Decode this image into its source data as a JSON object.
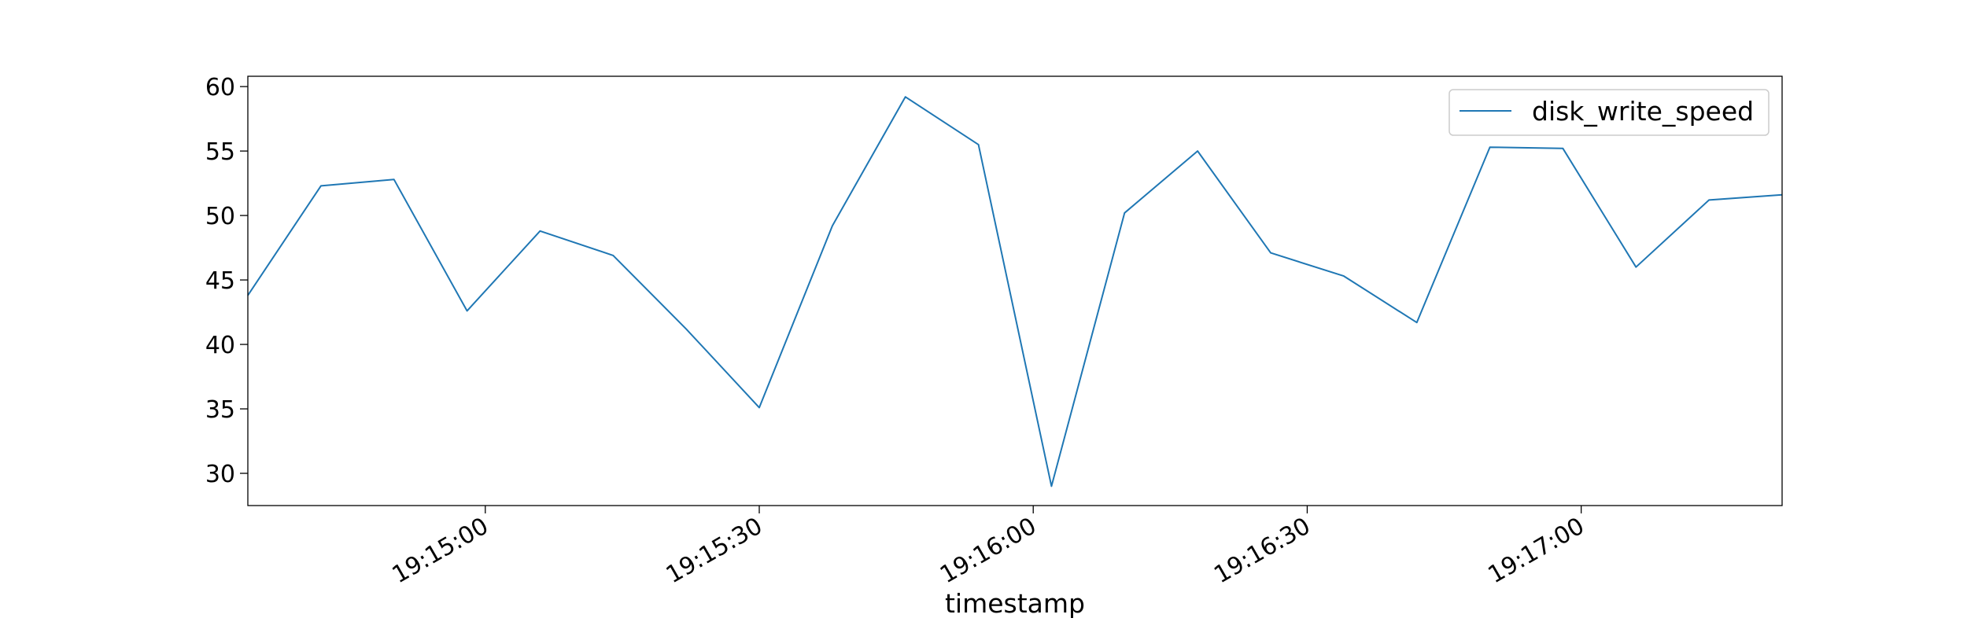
{
  "chart_data": {
    "type": "line",
    "title": "",
    "xlabel": "timestamp",
    "ylabel": "",
    "grid": false,
    "legend_position": "top-right",
    "x_range": [
      "19:14:34",
      "19:17:22"
    ],
    "ylim": [
      27.5,
      60.8
    ],
    "x_ticks": [
      "19:15:00",
      "19:15:30",
      "19:16:00",
      "19:16:30",
      "19:17:00"
    ],
    "y_ticks": [
      30,
      35,
      40,
      45,
      50,
      55,
      60
    ],
    "series": [
      {
        "name": "disk_write_speed",
        "color": "#1f77b4",
        "x": [
          "19:14:34",
          "19:14:42",
          "19:14:50",
          "19:14:58",
          "19:15:06",
          "19:15:14",
          "19:15:22",
          "19:15:30",
          "19:15:38",
          "19:15:46",
          "19:15:54",
          "19:16:02",
          "19:16:10",
          "19:16:18",
          "19:16:26",
          "19:16:34",
          "19:16:42",
          "19:16:50",
          "19:16:58",
          "19:17:06",
          "19:17:14",
          "19:17:22"
        ],
        "values": [
          43.8,
          52.3,
          52.8,
          42.6,
          48.8,
          46.9,
          41.2,
          35.1,
          49.2,
          59.2,
          55.5,
          29.0,
          50.2,
          55.0,
          47.1,
          45.3,
          41.7,
          55.3,
          55.2,
          46.0,
          51.2,
          51.6
        ]
      }
    ]
  }
}
